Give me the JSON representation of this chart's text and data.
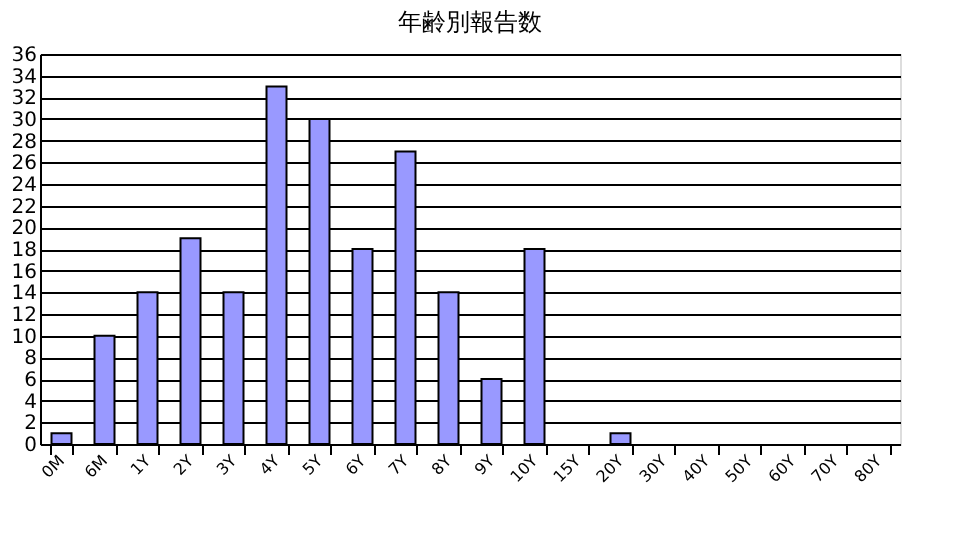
{
  "chart_data": {
    "type": "bar",
    "title": "年齢別報告数",
    "categories": [
      "0M",
      "6M",
      "1Y",
      "2Y",
      "3Y",
      "4Y",
      "5Y",
      "6Y",
      "7Y",
      "8Y",
      "9Y",
      "10Y",
      "15Y",
      "20Y",
      "30Y",
      "40Y",
      "50Y",
      "60Y",
      "70Y",
      "80Y"
    ],
    "values": [
      1,
      10,
      14,
      19,
      14,
      33,
      30,
      18,
      27,
      14,
      6,
      18,
      0,
      1,
      0,
      0,
      0,
      0,
      0,
      0
    ],
    "color": "#9999ff",
    "ylim": [
      0,
      36
    ],
    "yticks": [
      0,
      2,
      4,
      6,
      8,
      10,
      12,
      14,
      16,
      18,
      20,
      22,
      24,
      26,
      28,
      30,
      32,
      34,
      36
    ],
    "grid": "y"
  }
}
